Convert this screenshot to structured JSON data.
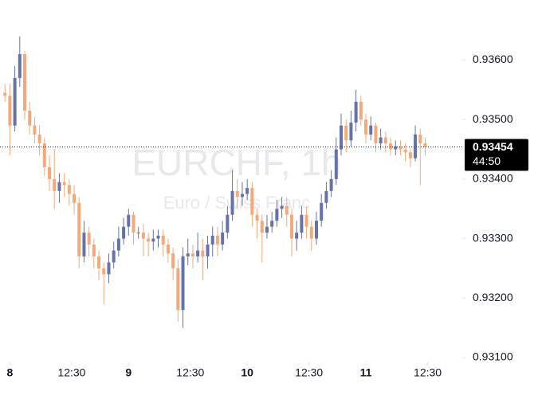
{
  "chart_data": {
    "type": "candlestick",
    "title": "EURCHF, 1h",
    "subtitle": "Euro / Swiss Franc",
    "up_color": "#6673a8",
    "down_color": "#f3a979",
    "x": [
      -1,
      0,
      1,
      2,
      3,
      4,
      5,
      6,
      7,
      8,
      9,
      10,
      11,
      12,
      13,
      14,
      15,
      16,
      17,
      18,
      19,
      20,
      21,
      22,
      23,
      24,
      25,
      26,
      27,
      28,
      29,
      30,
      31,
      32,
      33,
      34,
      35,
      36,
      37,
      38,
      39,
      40,
      41,
      42,
      43,
      44,
      45,
      46,
      47,
      48,
      49,
      50,
      51,
      52,
      53,
      54,
      55,
      56,
      57,
      58,
      59,
      60,
      61,
      62,
      63,
      64,
      65,
      66,
      67,
      68,
      69,
      70,
      71,
      72,
      73,
      74,
      75,
      76,
      77,
      78,
      79,
      80,
      81,
      82,
      83,
      84
    ],
    "open": [
      0.93545,
      0.9354,
      0.9349,
      0.9357,
      0.9361,
      0.93515,
      0.9349,
      0.93475,
      0.9346,
      0.9342,
      0.934,
      0.9338,
      0.93395,
      0.9339,
      0.93375,
      0.9336,
      0.9327,
      0.9331,
      0.9329,
      0.9327,
      0.9325,
      0.9324,
      0.9326,
      0.9328,
      0.933,
      0.9332,
      0.9334,
      0.9331,
      0.9331,
      0.933,
      0.93295,
      0.933,
      0.93305,
      0.9329,
      0.93275,
      0.9325,
      0.9318,
      0.9327,
      0.93275,
      0.9327,
      0.9328,
      0.9327,
      0.9329,
      0.93305,
      0.9329,
      0.9331,
      0.9334,
      0.9338,
      0.9337,
      0.93375,
      0.93385,
      0.9334,
      0.9333,
      0.9331,
      0.9332,
      0.9333,
      0.9335,
      0.93355,
      0.9334,
      0.933,
      0.9331,
      0.9334,
      0.9332,
      0.933,
      0.9333,
      0.9336,
      0.9338,
      0.934,
      0.9345,
      0.9349,
      0.93465,
      0.93495,
      0.9353,
      0.935,
      0.93475,
      0.9349,
      0.9346,
      0.9347,
      0.9346,
      0.9345,
      0.93455,
      0.9345,
      0.93445,
      0.93435,
      0.93475,
      0.9346
    ],
    "high": [
      0.9356,
      0.9356,
      0.9359,
      0.9364,
      0.93615,
      0.9353,
      0.93505,
      0.9349,
      0.9347,
      0.9344,
      0.9345,
      0.9341,
      0.9341,
      0.934,
      0.9339,
      0.9337,
      0.9333,
      0.9332,
      0.933,
      0.9328,
      0.9326,
      0.93275,
      0.93295,
      0.9332,
      0.93335,
      0.9335,
      0.93345,
      0.9332,
      0.93325,
      0.9331,
      0.93315,
      0.93315,
      0.93315,
      0.933,
      0.93285,
      0.93265,
      0.93285,
      0.933,
      0.9329,
      0.9331,
      0.933,
      0.93305,
      0.9332,
      0.9332,
      0.9333,
      0.93355,
      0.93415,
      0.934,
      0.93395,
      0.934,
      0.93395,
      0.9335,
      0.9334,
      0.9334,
      0.93345,
      0.93365,
      0.9337,
      0.9337,
      0.9335,
      0.9333,
      0.93355,
      0.93355,
      0.9333,
      0.93345,
      0.93375,
      0.93395,
      0.93415,
      0.9347,
      0.9351,
      0.935,
      0.93515,
      0.9355,
      0.9354,
      0.9351,
      0.93505,
      0.93495,
      0.93485,
      0.9348,
      0.9347,
      0.93465,
      0.93465,
      0.9346,
      0.9345,
      0.9349,
      0.93485,
      0.9347
    ],
    "low": [
      0.9353,
      0.9344,
      0.9348,
      0.93555,
      0.935,
      0.93475,
      0.9346,
      0.9344,
      0.93405,
      0.9338,
      0.9335,
      0.9336,
      0.9337,
      0.93355,
      0.9334,
      0.9325,
      0.9326,
      0.9327,
      0.9325,
      0.9323,
      0.9319,
      0.93225,
      0.9325,
      0.9327,
      0.9329,
      0.93305,
      0.9329,
      0.933,
      0.9327,
      0.9327,
      0.9328,
      0.93285,
      0.9327,
      0.9326,
      0.9323,
      0.9316,
      0.9315,
      0.93255,
      0.9325,
      0.9326,
      0.9323,
      0.9325,
      0.9327,
      0.9327,
      0.9328,
      0.933,
      0.9333,
      0.9335,
      0.93355,
      0.93365,
      0.9332,
      0.933,
      0.9326,
      0.933,
      0.9331,
      0.9332,
      0.93335,
      0.9332,
      0.9327,
      0.9328,
      0.933,
      0.933,
      0.9328,
      0.9329,
      0.9332,
      0.9335,
      0.9337,
      0.9339,
      0.9344,
      0.93445,
      0.93455,
      0.9348,
      0.9349,
      0.9346,
      0.93465,
      0.93445,
      0.9345,
      0.93445,
      0.9344,
      0.9344,
      0.9344,
      0.9343,
      0.9342,
      0.9343,
      0.9339,
      0.9344
    ],
    "close": [
      0.9354,
      0.9349,
      0.9357,
      0.9361,
      0.93515,
      0.9349,
      0.93475,
      0.9346,
      0.9342,
      0.934,
      0.9338,
      0.93395,
      0.9339,
      0.93375,
      0.9336,
      0.9327,
      0.9331,
      0.9329,
      0.9327,
      0.9325,
      0.9324,
      0.9326,
      0.9328,
      0.933,
      0.9332,
      0.9334,
      0.9331,
      0.9331,
      0.933,
      0.93295,
      0.933,
      0.93305,
      0.9329,
      0.93275,
      0.9325,
      0.9318,
      0.9327,
      0.93275,
      0.9327,
      0.9328,
      0.9327,
      0.9329,
      0.93305,
      0.9329,
      0.9331,
      0.9334,
      0.9338,
      0.9337,
      0.93375,
      0.93385,
      0.9334,
      0.9333,
      0.9331,
      0.9332,
      0.9333,
      0.9335,
      0.93355,
      0.9334,
      0.933,
      0.9331,
      0.9334,
      0.9332,
      0.933,
      0.9333,
      0.9336,
      0.9338,
      0.934,
      0.9345,
      0.9349,
      0.93465,
      0.93495,
      0.9353,
      0.935,
      0.93475,
      0.9349,
      0.9346,
      0.9347,
      0.9346,
      0.9345,
      0.93455,
      0.9345,
      0.93445,
      0.93435,
      0.93475,
      0.9346,
      0.93454
    ],
    "last_price": 0.93454,
    "countdown": "44:50",
    "xlim": [
      -2,
      91.5
    ],
    "xticks": [
      {
        "value": 0,
        "label": "8"
      },
      {
        "value": 12.5,
        "label": "12:30"
      },
      {
        "value": 24,
        "label": "9"
      },
      {
        "value": 36.5,
        "label": "12:30"
      },
      {
        "value": 48,
        "label": "10"
      },
      {
        "value": 60.5,
        "label": "12:30"
      },
      {
        "value": 72,
        "label": "11"
      },
      {
        "value": 84.5,
        "label": "12:30"
      }
    ],
    "ylim": [
      0.93092,
      0.93701
    ],
    "yticks": [
      {
        "value": 0.931,
        "label": "0.93100"
      },
      {
        "value": 0.932,
        "label": "0.93200"
      },
      {
        "value": 0.933,
        "label": "0.93300"
      },
      {
        "value": 0.934,
        "label": "0.93400"
      },
      {
        "value": 0.935,
        "label": "0.93500"
      },
      {
        "value": 0.936,
        "label": "0.93600"
      }
    ]
  }
}
